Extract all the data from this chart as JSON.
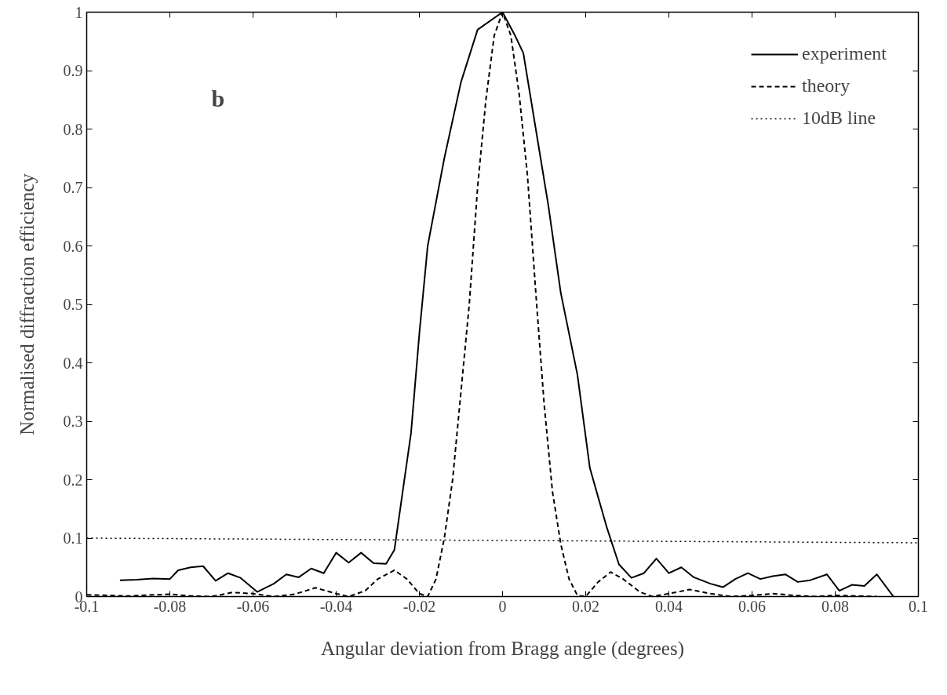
{
  "chart_data": {
    "type": "line",
    "xlabel": "Angular deviation from Bragg angle (degrees)",
    "ylabel": "Normalised diffraction efficiency",
    "annotations": [
      "b"
    ],
    "xlim": [
      -0.1,
      0.1
    ],
    "ylim": [
      0,
      1
    ],
    "xticks": [
      -0.1,
      -0.08,
      -0.06,
      -0.04,
      -0.02,
      0,
      0.02,
      0.04,
      0.06,
      0.08,
      0.1
    ],
    "yticks": [
      0,
      0.1,
      0.2,
      0.3,
      0.4,
      0.5,
      0.6,
      0.7,
      0.8,
      0.9,
      1
    ],
    "grid": false,
    "legend": "top right",
    "marker": "none",
    "series": [
      {
        "name": "experiment",
        "color": "#000000",
        "line_style": "solid",
        "x": [
          -0.092,
          -0.088,
          -0.084,
          -0.08,
          -0.078,
          -0.075,
          -0.072,
          -0.069,
          -0.066,
          -0.063,
          -0.059,
          -0.055,
          -0.052,
          -0.049,
          -0.046,
          -0.043,
          -0.04,
          -0.037,
          -0.034,
          -0.031,
          -0.028,
          -0.026,
          -0.024,
          -0.022,
          -0.02,
          -0.018,
          -0.014,
          -0.01,
          -0.006,
          0.0,
          0.003,
          0.005,
          0.008,
          0.011,
          0.014,
          0.018,
          0.021,
          0.025,
          0.028,
          0.031,
          0.034,
          0.037,
          0.04,
          0.043,
          0.046,
          0.05,
          0.053,
          0.056,
          0.059,
          0.062,
          0.065,
          0.068,
          0.071,
          0.074,
          0.078,
          0.081,
          0.084,
          0.087,
          0.09,
          0.094
        ],
        "values": [
          0.028,
          0.029,
          0.031,
          0.03,
          0.045,
          0.05,
          0.052,
          0.027,
          0.04,
          0.032,
          0.008,
          0.022,
          0.038,
          0.033,
          0.048,
          0.04,
          0.075,
          0.058,
          0.075,
          0.057,
          0.056,
          0.08,
          0.18,
          0.28,
          0.45,
          0.6,
          0.75,
          0.88,
          0.97,
          1.0,
          0.96,
          0.93,
          0.8,
          0.67,
          0.52,
          0.38,
          0.22,
          0.12,
          0.055,
          0.032,
          0.04,
          0.065,
          0.04,
          0.05,
          0.033,
          0.022,
          0.016,
          0.03,
          0.04,
          0.03,
          0.035,
          0.038,
          0.025,
          0.028,
          0.038,
          0.01,
          0.02,
          0.018,
          0.038,
          0.0
        ]
      },
      {
        "name": "theory",
        "color": "#000000",
        "line_style": "dashed",
        "x": [
          -0.1,
          -0.09,
          -0.08,
          -0.075,
          -0.07,
          -0.065,
          -0.06,
          -0.055,
          -0.05,
          -0.045,
          -0.04,
          -0.037,
          -0.033,
          -0.03,
          -0.026,
          -0.023,
          -0.02,
          -0.018,
          -0.016,
          -0.014,
          -0.012,
          -0.01,
          -0.008,
          -0.006,
          -0.004,
          -0.002,
          0.0,
          0.002,
          0.004,
          0.006,
          0.008,
          0.01,
          0.012,
          0.014,
          0.016,
          0.018,
          0.02,
          0.023,
          0.026,
          0.029,
          0.033,
          0.036,
          0.04,
          0.045,
          0.05,
          0.055,
          0.06,
          0.065,
          0.07,
          0.075,
          0.08,
          0.085,
          0.09
        ],
        "values": [
          0.003,
          0.001,
          0.004,
          0.001,
          0.0,
          0.007,
          0.005,
          0.0,
          0.004,
          0.015,
          0.005,
          0.0,
          0.01,
          0.03,
          0.045,
          0.03,
          0.005,
          0.0,
          0.03,
          0.1,
          0.2,
          0.35,
          0.5,
          0.7,
          0.85,
          0.96,
          1.0,
          0.96,
          0.86,
          0.72,
          0.52,
          0.33,
          0.18,
          0.09,
          0.03,
          0.002,
          0.0,
          0.025,
          0.042,
          0.03,
          0.008,
          0.0,
          0.005,
          0.012,
          0.005,
          0.0,
          0.002,
          0.005,
          0.002,
          0.0,
          0.002,
          0.001,
          0.0
        ]
      },
      {
        "name": "10dB line",
        "color": "#000000",
        "line_style": "dotted",
        "x": [
          -0.1,
          0.1
        ],
        "values": [
          0.1,
          0.092
        ]
      }
    ]
  }
}
